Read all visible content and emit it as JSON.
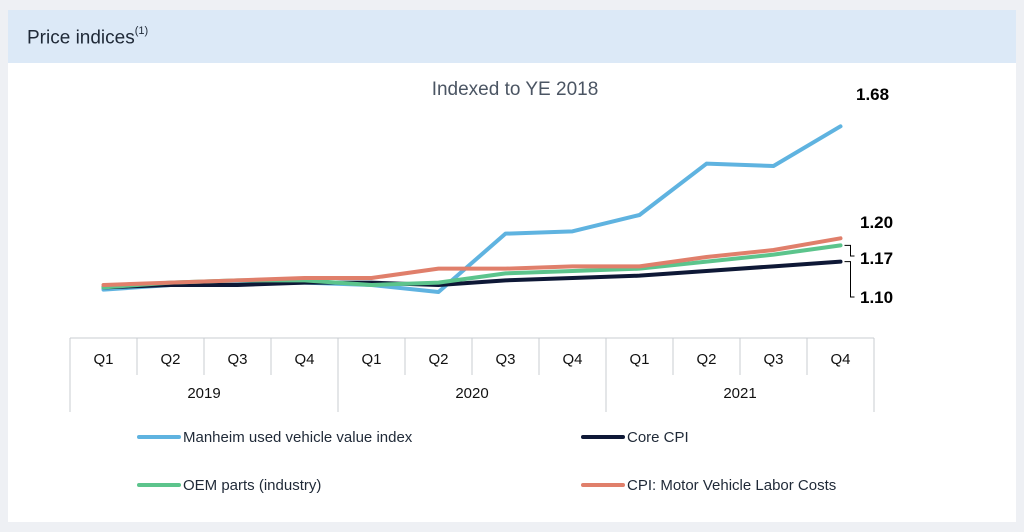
{
  "header": {
    "title": "Price indices",
    "superscript": "(1)"
  },
  "chart_data": {
    "type": "line",
    "title": "Indexed to YE 2018",
    "categories": [
      "Q1",
      "Q2",
      "Q3",
      "Q4",
      "Q1",
      "Q2",
      "Q3",
      "Q4",
      "Q1",
      "Q2",
      "Q3",
      "Q4"
    ],
    "years": [
      "2019",
      "2020",
      "2021"
    ],
    "ylim": [
      0.85,
      1.75
    ],
    "series": [
      {
        "name": "Manheim used vehicle value index",
        "color": "#5fb3e0",
        "values": [
          0.98,
          1.0,
          1.01,
          1.01,
          1.0,
          0.97,
          1.22,
          1.23,
          1.3,
          1.52,
          1.51,
          1.68
        ]
      },
      {
        "name": "Core CPI",
        "color": "#0e1836",
        "values": [
          0.99,
          1.0,
          1.0,
          1.01,
          1.01,
          1.0,
          1.02,
          1.03,
          1.04,
          1.06,
          1.08,
          1.1
        ]
      },
      {
        "name": "OEM parts (industry)",
        "color": "#5cc48c",
        "values": [
          0.99,
          1.01,
          1.02,
          1.02,
          1.0,
          1.01,
          1.05,
          1.06,
          1.07,
          1.1,
          1.13,
          1.17
        ]
      },
      {
        "name": "CPI: Motor Vehicle Labor Costs",
        "color": "#e07f6b",
        "values": [
          1.0,
          1.01,
          1.02,
          1.03,
          1.03,
          1.07,
          1.07,
          1.08,
          1.08,
          1.12,
          1.15,
          1.2
        ]
      }
    ],
    "end_labels": [
      "1.68",
      "1.20",
      "1.17",
      "1.10"
    ]
  }
}
